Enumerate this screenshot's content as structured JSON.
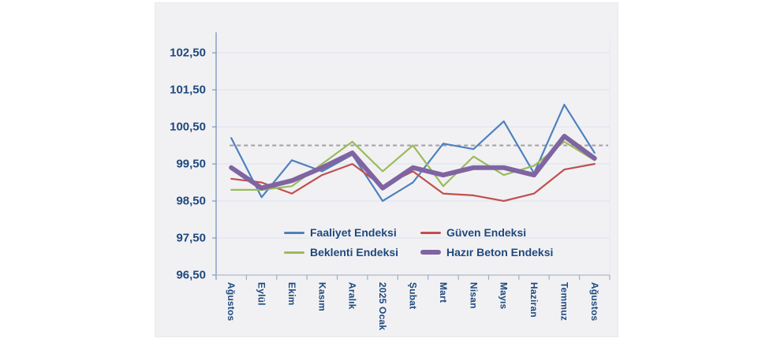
{
  "chart_data": {
    "type": "line",
    "title": "",
    "categories": [
      "Ağustos",
      "Eylül",
      "Ekim",
      "Kasım",
      "Aralık",
      "2025 Ocak",
      "Şubat",
      "Mart",
      "Nisan",
      "Mayıs",
      "Haziran",
      "Temmuz",
      "Ağustos"
    ],
    "y_ticks": [
      "102,50",
      "101,50",
      "100,50",
      "99,50",
      "98,50",
      "97,50",
      "96,50"
    ],
    "ylim": [
      96.5,
      103.0
    ],
    "xlabel": "",
    "ylabel": "",
    "grid": true,
    "legend_position": "bottom-inside",
    "reference_line": {
      "value": 100.0,
      "style": "dashed",
      "color": "#a0a0a0"
    },
    "series": [
      {
        "name": "Faaliyet Endeksi",
        "color": "#4f81bd",
        "thickness": "thin",
        "values": [
          100.2,
          98.6,
          99.6,
          99.3,
          99.75,
          98.5,
          99.0,
          100.05,
          99.9,
          100.65,
          99.25,
          101.1,
          99.8
        ]
      },
      {
        "name": "Güven Endeksi",
        "color": "#c0504d",
        "thickness": "thin",
        "values": [
          99.1,
          99.0,
          98.7,
          99.2,
          99.5,
          98.9,
          99.3,
          98.7,
          98.65,
          98.5,
          98.7,
          99.35,
          99.5
        ]
      },
      {
        "name": "Beklenti Endeksi",
        "color": "#9bbb59",
        "thickness": "thin",
        "values": [
          98.8,
          98.8,
          98.9,
          99.5,
          100.1,
          99.3,
          100.0,
          98.9,
          99.7,
          99.2,
          99.45,
          100.1,
          99.6
        ]
      },
      {
        "name": "Hazır Beton Endeksi",
        "color": "#8064a2",
        "thickness": "thick",
        "values": [
          99.4,
          98.85,
          99.05,
          99.4,
          99.8,
          98.85,
          99.4,
          99.2,
          99.4,
          99.4,
          99.2,
          100.25,
          99.65
        ]
      }
    ],
    "colors": {
      "axis_text": "#1f497d",
      "panel_background": "#f1f1f4",
      "page_background": "#ffffff"
    }
  }
}
